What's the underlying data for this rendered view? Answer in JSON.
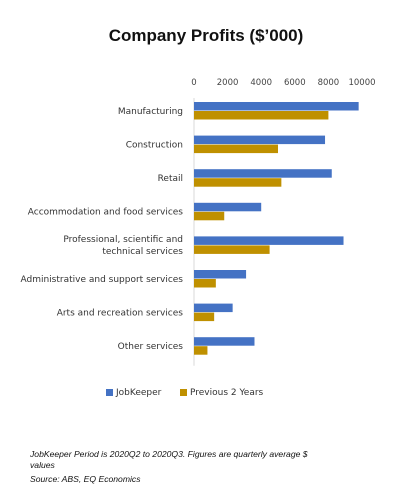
{
  "chart_data": {
    "type": "bar",
    "orientation": "horizontal",
    "title": "Company Profits ($’000)",
    "categories": [
      "Manufacturing",
      "Construction",
      "Retail",
      "Accommodation and food services",
      "Professional, scientific and technical services",
      "Administrative and support services",
      "Arts and recreation services",
      "Other services"
    ],
    "series": [
      {
        "name": "JobKeeper",
        "color": "#4472c4",
        "values": [
          9800,
          7800,
          8200,
          4000,
          8900,
          3100,
          2300,
          3600
        ]
      },
      {
        "name": "Previous 2 Years",
        "color": "#bf9000",
        "values": [
          8000,
          5000,
          5200,
          1800,
          4500,
          1300,
          1200,
          800
        ]
      }
    ],
    "xticks": [
      "0",
      "2000",
      "4000",
      "6000",
      "8000",
      "10000"
    ],
    "xlim": [
      0,
      10000
    ],
    "xaxis_position": "top",
    "grid": false,
    "legend_position": "bottom"
  },
  "notes": {
    "period": "JobKeeper Period is 2020Q2 to 2020Q3. Figures are quarterly average $ values",
    "source": "Source: ABS, EQ Economics"
  }
}
